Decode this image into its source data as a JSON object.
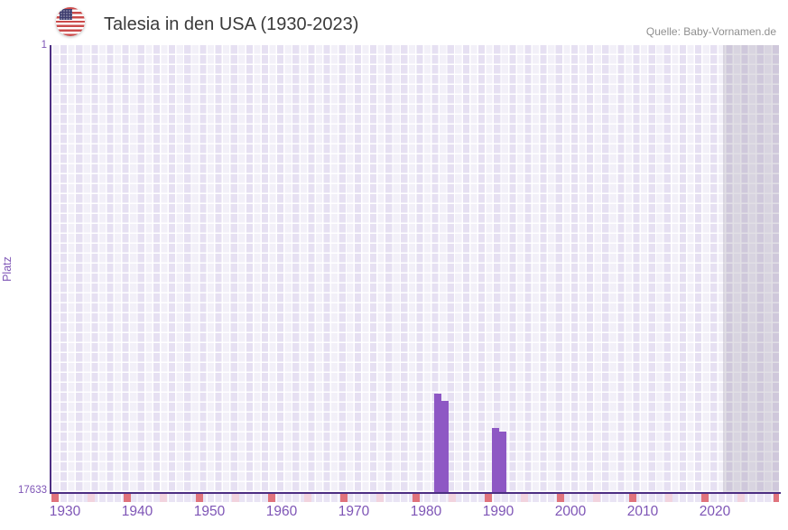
{
  "header": {
    "title": "Talesia in den USA (1930-2023)",
    "source": "Quelle: Baby-Vornamen.de",
    "flag_icon": "us-flag-circle-icon"
  },
  "axes": {
    "y_title": "Platz",
    "y_top_label": "1",
    "y_bottom_label": "17633",
    "x_tick_labels": [
      "1930",
      "1940",
      "1950",
      "1960",
      "1970",
      "1980",
      "1990",
      "2000",
      "2010",
      "2020"
    ]
  },
  "chart_data": {
    "type": "bar",
    "title": "Talesia in den USA (1930-2023)",
    "xlabel": "",
    "ylabel": "Platz",
    "y_axis": {
      "inverted": true,
      "top_rank": 1,
      "bottom_rank": 17633
    },
    "x_axis": {
      "first_year": 1930,
      "last_data_year": 2023,
      "visible_year_range": [
        1929.5,
        2030.5
      ],
      "grid": true
    },
    "series": [
      {
        "name": "Platz",
        "points": [
          {
            "year": 1983,
            "rank": 13750
          },
          {
            "year": 1984,
            "rank": 14020
          },
          {
            "year": 1991,
            "rank": 15100
          },
          {
            "year": 1992,
            "rank": 15250
          }
        ],
        "note": "ranks estimated from bar heights; y axis inverted (rank 1 = top)"
      }
    ],
    "no_data_band": {
      "from_year": 2023.5,
      "to_year": 2030.5
    },
    "timeline_markers": {
      "decade_years": [
        1930,
        1940,
        1950,
        1960,
        1970,
        1980,
        1990,
        2000,
        2010,
        2020,
        2030
      ],
      "half_decade_years": [
        1935,
        1945,
        1955,
        1965,
        1975,
        1985,
        1995,
        2005,
        2015,
        2025
      ]
    },
    "legend": null
  },
  "colors": {
    "bar": "#8e58c4",
    "axis_line": "#4c2e82",
    "tick_label": "#7e55b6",
    "decade_marker": "#e0737c",
    "half_decade_marker": "#f2d3de",
    "title_text": "#3a3a3a",
    "source_text": "#8f8f8f",
    "grid_cell": "#e6e0f2",
    "no_data_band_tint": "rgba(143,135,159,0.27)"
  }
}
